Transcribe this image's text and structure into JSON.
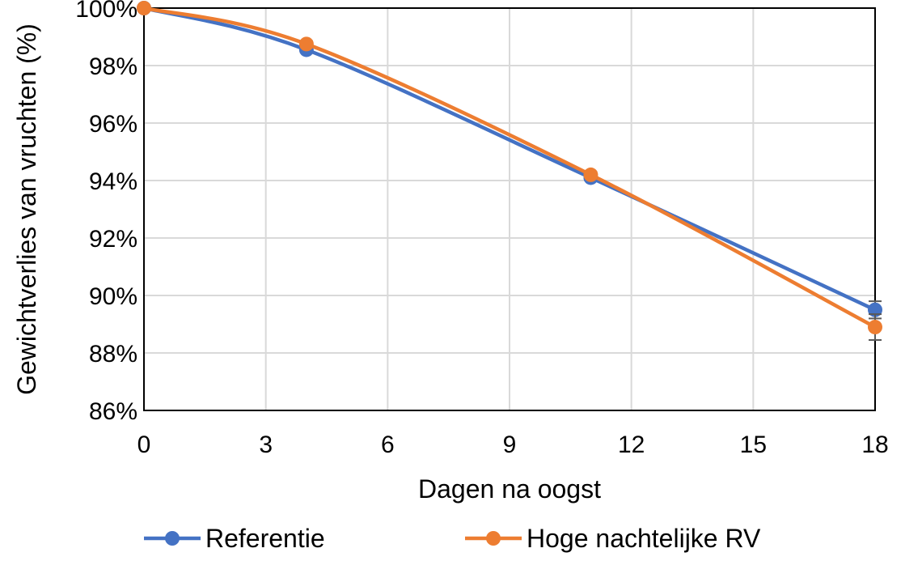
{
  "chart_data": {
    "type": "line",
    "xlabel": "Dagen na oogst",
    "ylabel": "Gewichtverlies van vruchten (%)",
    "xlim": [
      0,
      18
    ],
    "ylim": [
      86,
      100
    ],
    "x_ticks": [
      "0",
      "3",
      "6",
      "9",
      "12",
      "15",
      "18"
    ],
    "y_ticks": [
      "86%",
      "88%",
      "90%",
      "92%",
      "94%",
      "96%",
      "98%",
      "100%"
    ],
    "grid": true,
    "legend_position": "bottom",
    "smooth": true,
    "series": [
      {
        "name": "Referentie",
        "color": "#4472C4",
        "x": [
          0,
          4,
          11,
          18
        ],
        "values": [
          100.0,
          98.55,
          94.1,
          89.5
        ],
        "error": [
          0,
          0.1,
          0.1,
          0.3
        ]
      },
      {
        "name": "Hoge nachtelijke RV",
        "color": "#ED7D31",
        "x": [
          0,
          4,
          11,
          18
        ],
        "values": [
          100.0,
          98.75,
          94.2,
          88.9
        ],
        "error": [
          0,
          0.1,
          0.1,
          0.45
        ]
      }
    ]
  }
}
